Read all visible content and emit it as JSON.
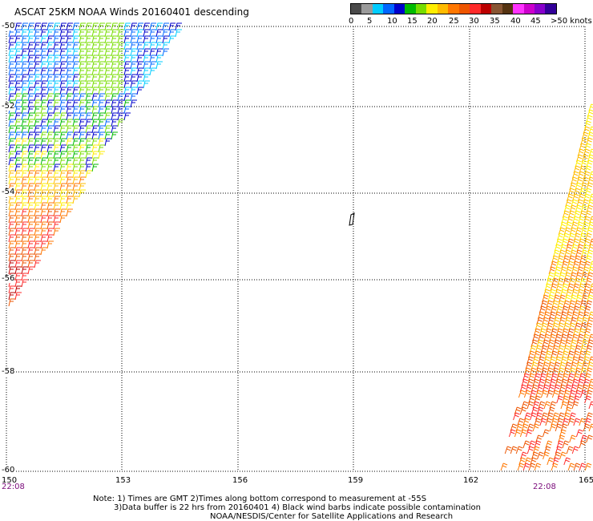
{
  "title": "ASCAT 25KM NOAA Winds 20160401 descending",
  "legend": {
    "colors": [
      "#4a4a4a",
      "#9a9a9a",
      "#00ccff",
      "#0066ff",
      "#0000cc",
      "#00bb00",
      "#77dd00",
      "#ffee00",
      "#ffbb00",
      "#ff7700",
      "#ee5500",
      "#ff2a2a",
      "#bb0000",
      "#885533",
      "#553311",
      "#ff33ff",
      "#cc00cc",
      "#8800cc",
      "#330099"
    ],
    "labels": [
      "0",
      "5",
      "10",
      "15",
      "20",
      "25",
      "30",
      "35",
      "40",
      "45",
      ">50 knots"
    ]
  },
  "lat_labels": [
    "-50",
    "-52",
    "-54",
    "-56",
    "-58",
    "-60"
  ],
  "lon_labels": [
    "150",
    "153",
    "156",
    "159",
    "162",
    "165"
  ],
  "time_labels": {
    "left": "22:08",
    "right": "22:08"
  },
  "notes": [
    "Note: 1) Times are GMT 2)Times along bottom correspond to measurement at -55S",
    "3)Data buffer is 22 hrs from 20160401 4) Black wind barbs indicate possible contamination",
    "NOAA/NESDIS/Center for Satellite Applications and Research"
  ]
}
